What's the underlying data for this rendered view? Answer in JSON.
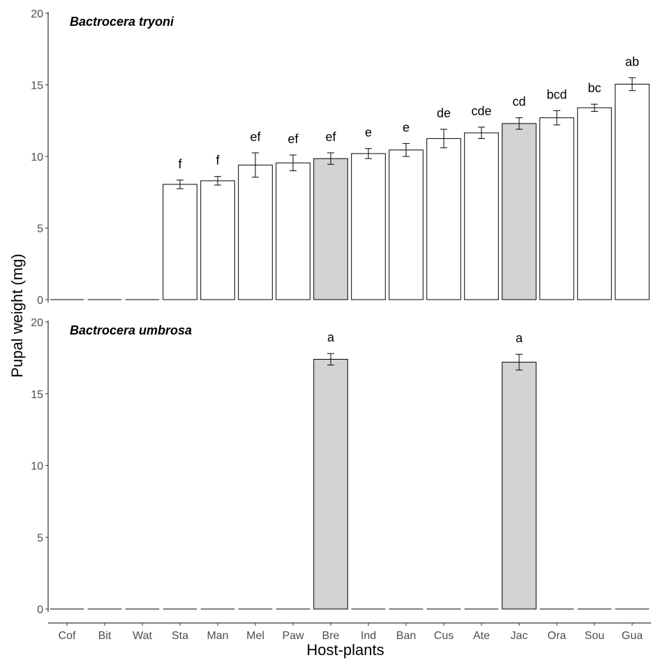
{
  "chart_data": {
    "type": "bar",
    "xlabel": "Host-plants",
    "ylabel": "Pupal weight (mg)",
    "categories": [
      "Cof",
      "Bit",
      "Wat",
      "Sta",
      "Man",
      "Mel",
      "Paw",
      "Bre",
      "Ind",
      "Ban",
      "Cus",
      "Ate",
      "Jac",
      "Ora",
      "Sou",
      "Gua"
    ],
    "highlight_color": "#d3d3d3",
    "bar_color": "#ffffff",
    "highlighted_categories": [
      "Bre",
      "Jac"
    ],
    "panels": [
      {
        "title": "Bactrocera tryoni",
        "ylim": [
          0,
          20
        ],
        "yticks": [
          0,
          5,
          10,
          15,
          20
        ],
        "values": [
          0,
          0,
          0,
          8.05,
          8.3,
          9.4,
          9.55,
          9.85,
          10.2,
          10.45,
          11.25,
          11.65,
          12.3,
          12.7,
          13.4,
          15.05
        ],
        "errors": [
          0,
          0,
          0,
          0.3,
          0.3,
          0.85,
          0.55,
          0.4,
          0.35,
          0.45,
          0.65,
          0.4,
          0.4,
          0.5,
          0.25,
          0.45
        ],
        "letters": [
          "",
          "",
          "",
          "f",
          "f",
          "ef",
          "ef",
          "ef",
          "e",
          "e",
          "de",
          "cde",
          "cd",
          "bcd",
          "bc",
          "ab"
        ]
      },
      {
        "title": "Bactrocera umbrosa",
        "ylim": [
          0,
          20
        ],
        "yticks": [
          0,
          5,
          10,
          15,
          20
        ],
        "values": [
          0,
          0,
          0,
          0,
          0,
          0,
          0,
          17.4,
          0,
          0,
          0,
          0,
          17.2,
          0,
          0,
          0
        ],
        "errors": [
          0,
          0,
          0,
          0,
          0,
          0,
          0,
          0.4,
          0,
          0,
          0,
          0,
          0.55,
          0,
          0,
          0
        ],
        "letters": [
          "",
          "",
          "",
          "",
          "",
          "",
          "",
          "a",
          "",
          "",
          "",
          "",
          "a",
          "",
          "",
          ""
        ]
      }
    ]
  }
}
